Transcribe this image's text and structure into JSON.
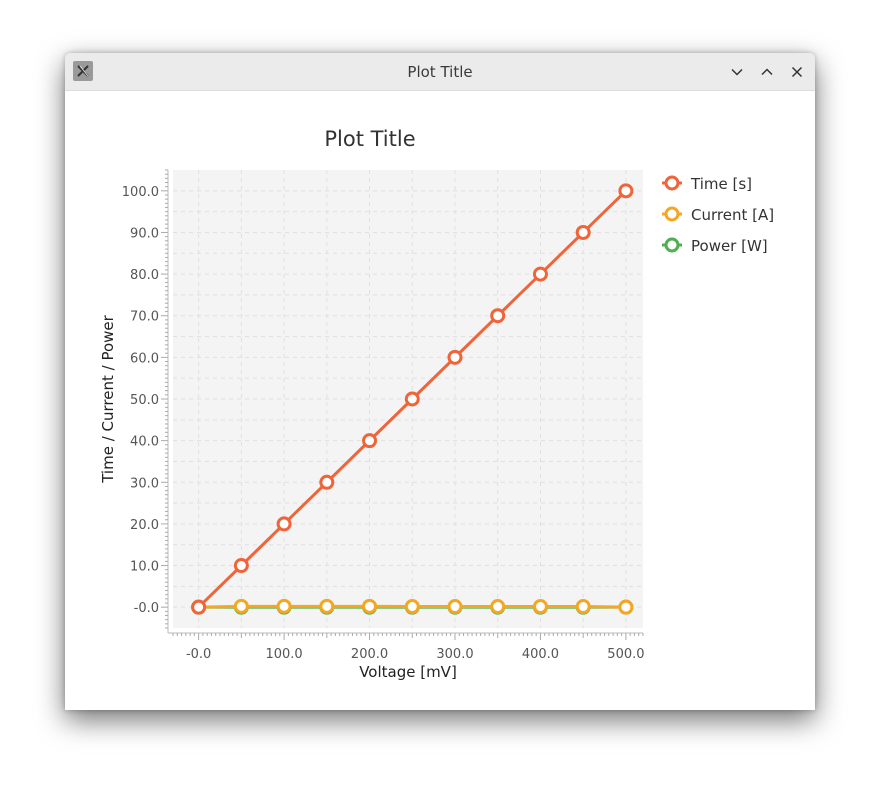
{
  "window": {
    "title": "Plot Title",
    "app_icon": "x-logo-icon",
    "controls": [
      "minimize-icon",
      "maximize-icon",
      "close-icon"
    ]
  },
  "chart_data": {
    "type": "line",
    "title": "Plot Title",
    "xlabel": "Voltage [mV]",
    "ylabel": "Time / Current / Power",
    "xlim": [
      -30,
      520
    ],
    "ylim": [
      -5,
      105
    ],
    "xticks": [
      0,
      100,
      200,
      300,
      400,
      500
    ],
    "xtick_labels": [
      "-0.0",
      "100.0",
      "200.0",
      "300.0",
      "400.0",
      "500.0"
    ],
    "yticks": [
      0,
      10,
      20,
      30,
      40,
      50,
      60,
      70,
      80,
      90,
      100
    ],
    "ytick_labels": [
      "-0.0",
      "10.0",
      "20.0",
      "30.0",
      "40.0",
      "50.0",
      "60.0",
      "70.0",
      "80.0",
      "90.0",
      "100.0"
    ],
    "grid": true,
    "legend_position": "right",
    "x": [
      0,
      50,
      100,
      150,
      200,
      250,
      300,
      350,
      400,
      450,
      500
    ],
    "series": [
      {
        "name": "Time [s]",
        "color": "#f0643a",
        "values": [
          0,
          10,
          20,
          30,
          40,
          50,
          60,
          70,
          80,
          90,
          100
        ]
      },
      {
        "name": "Current [A]",
        "color": "#f5a623",
        "values": [
          0,
          0.2,
          0.2,
          0.2,
          0.2,
          0.15,
          0.15,
          0.15,
          0.15,
          0.15,
          0
        ]
      },
      {
        "name": "Power [W]",
        "color": "#4caf50",
        "values": [
          0,
          0,
          0,
          0,
          0,
          0,
          0,
          0,
          0,
          0,
          0
        ]
      }
    ]
  }
}
